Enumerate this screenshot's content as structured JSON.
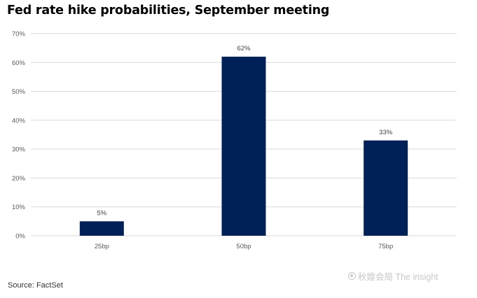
{
  "header": {
    "title": "Fed rate hike probabilities, September meeting"
  },
  "footer": {
    "source": "Source: FactSet"
  },
  "watermark": {
    "text": "秋媓会局 The insight",
    "icon": "watermark-logo-icon"
  },
  "colors": {
    "bar": "#002157",
    "grid": "#d9d9d9",
    "tick_text": "#595959"
  },
  "chart_data": {
    "type": "bar",
    "title": "Fed rate hike probabilities, September meeting",
    "categories": [
      "25bp",
      "50bp",
      "75bp"
    ],
    "values": [
      5,
      62,
      33
    ],
    "data_labels": [
      "5%",
      "62%",
      "33%"
    ],
    "y_ticks": [
      "0%",
      "10%",
      "20%",
      "30%",
      "40%",
      "50%",
      "60%",
      "70%"
    ],
    "ylim": [
      0,
      70
    ],
    "xlabel": "",
    "ylabel": "",
    "grid": true,
    "legend": "none"
  }
}
